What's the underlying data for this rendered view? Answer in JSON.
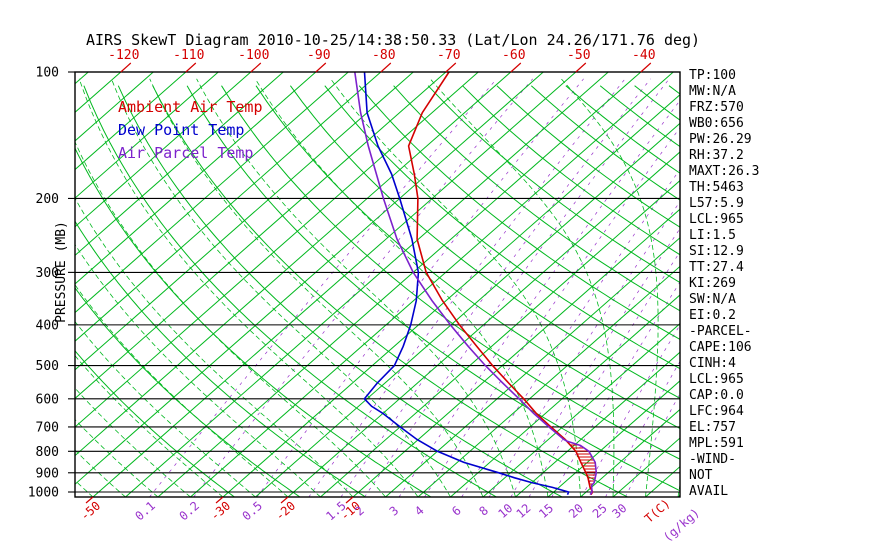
{
  "title": "AIRS SkewT Diagram 2010-10-25/14:38:50.33 (Lat/Lon 24.26/171.76 deg)",
  "colors": {
    "ambient": "#d40000",
    "dewpoint": "#0000cd",
    "parcel": "#7c22cc",
    "mixratio": "#9933cc",
    "green": "#00b81e",
    "black": "#000000"
  },
  "legend": [
    {
      "label": "Ambient Air Temp",
      "color": "ambient"
    },
    {
      "label": "Dew Point Temp",
      "color": "dewpoint"
    },
    {
      "label": "Air Parcel Temp",
      "color": "parcel"
    }
  ],
  "axes": {
    "pressure_label": "PRESSURE (MB)",
    "pressure_ticks": [
      100,
      200,
      300,
      400,
      500,
      600,
      700,
      800,
      900,
      1000
    ],
    "top_temp_ticks_C": [
      -120,
      -110,
      -100,
      -90,
      -80,
      -70,
      -60,
      -50,
      -40
    ],
    "bottom_temp_ticks_C": [
      -50,
      -30,
      -20,
      -10
    ],
    "mixratio_ticks_gkg": [
      0.1,
      0.2,
      0.5,
      1.5,
      2,
      3,
      4,
      6,
      8,
      10,
      12,
      15,
      20,
      25,
      30
    ],
    "temp_unit_label": "T(C)",
    "mixratio_unit_label": "(g/kg)"
  },
  "stats": [
    "TP:100",
    "MW:N/A",
    "FRZ:570",
    "WB0:656",
    "PW:26.29",
    "RH:37.2",
    "MAXT:26.3",
    "TH:5463",
    "L57:5.9",
    "LCL:965",
    "LI:1.5",
    "SI:12.9",
    "TT:27.4",
    "KI:269",
    "SW:N/A",
    "EI:0.2",
    "-PARCEL-",
    "CAPE:106",
    "CINH:4",
    "LCL:965",
    "CAP:0.0",
    "LFC:964",
    "EL:757",
    "MPL:591",
    "-WIND-",
    "NOT",
    "AVAIL"
  ],
  "chart_data": {
    "type": "line",
    "diagram": "skew-t log-p sounding",
    "title": "AIRS SkewT Diagram 2010-10-25/14:38:50.33 (Lat/Lon 24.26/171.76 deg)",
    "xlabel": "Temperature (C)",
    "ylabel": "Pressure (mb)",
    "ylim": [
      1028,
      100
    ],
    "top_axis_temp_range_C": [
      -120,
      -40
    ],
    "grid": {
      "isotherms_C": {
        "min": -130,
        "max": 40,
        "step": 5
      },
      "dry_adiabats_theta_K": {
        "min": 243,
        "max": 473,
        "step": 10
      },
      "moist_adiabats_start_C": {
        "min": -60,
        "max": 40,
        "step": 5
      },
      "mixing_ratio_lines_gkg": [
        0.1,
        0.2,
        0.5,
        1,
        1.5,
        2,
        3,
        4,
        6,
        8,
        10,
        12,
        15,
        20,
        25,
        30
      ]
    },
    "series": [
      {
        "key": "ambient",
        "name": "Ambient Air Temp",
        "points": [
          [
            1015,
            26.2
          ],
          [
            1000,
            26.0
          ],
          [
            975,
            24.8
          ],
          [
            950,
            23.8
          ],
          [
            925,
            22.8
          ],
          [
            900,
            21.6
          ],
          [
            850,
            19.0
          ],
          [
            800,
            16.3
          ],
          [
            750,
            12.6
          ],
          [
            700,
            8.2
          ],
          [
            650,
            3.6
          ],
          [
            600,
            -0.9
          ],
          [
            550,
            -6.0
          ],
          [
            500,
            -11.5
          ],
          [
            450,
            -17.3
          ],
          [
            400,
            -23.7
          ],
          [
            350,
            -30.6
          ],
          [
            300,
            -38.0
          ],
          [
            250,
            -45.2
          ],
          [
            200,
            -52.2
          ],
          [
            175,
            -57.0
          ],
          [
            150,
            -62.8
          ],
          [
            125,
            -66.5
          ],
          [
            100,
            -69.5
          ]
        ]
      },
      {
        "key": "dewpoint",
        "name": "Dew Point Temp",
        "points": [
          [
            1015,
            22.6
          ],
          [
            1000,
            22.3
          ],
          [
            975,
            19.0
          ],
          [
            950,
            15.0
          ],
          [
            925,
            11.5
          ],
          [
            900,
            8.2
          ],
          [
            850,
            1.0
          ],
          [
            800,
            -5.0
          ],
          [
            750,
            -10.2
          ],
          [
            700,
            -15.0
          ],
          [
            650,
            -20.0
          ],
          [
            625,
            -23.0
          ],
          [
            600,
            -25.4
          ],
          [
            550,
            -26.2
          ],
          [
            500,
            -26.6
          ],
          [
            450,
            -28.6
          ],
          [
            400,
            -31.2
          ],
          [
            350,
            -34.6
          ],
          [
            300,
            -39.2
          ],
          [
            250,
            -46.0
          ],
          [
            200,
            -55.0
          ],
          [
            175,
            -60.5
          ],
          [
            150,
            -67.5
          ],
          [
            125,
            -75.0
          ],
          [
            100,
            -82.5
          ]
        ]
      },
      {
        "key": "parcel",
        "name": "Air Parcel Temp",
        "points": [
          [
            1015,
            26.1
          ],
          [
            1000,
            25.9
          ],
          [
            965,
            24.7
          ],
          [
            950,
            24.6
          ],
          [
            900,
            23.2
          ],
          [
            850,
            21.2
          ],
          [
            800,
            18.3
          ],
          [
            775,
            16.0
          ],
          [
            757,
            13.2
          ],
          [
            750,
            12.4
          ],
          [
            700,
            7.9
          ],
          [
            650,
            3.2
          ],
          [
            600,
            -1.6
          ],
          [
            550,
            -6.9
          ],
          [
            500,
            -12.6
          ],
          [
            450,
            -18.6
          ],
          [
            400,
            -25.1
          ],
          [
            350,
            -32.2
          ],
          [
            300,
            -40.0
          ],
          [
            250,
            -48.3
          ],
          [
            200,
            -57.5
          ],
          [
            150,
            -69.0
          ],
          [
            125,
            -76.0
          ],
          [
            100,
            -84.0
          ]
        ]
      }
    ],
    "cape_hatch_pressure_range_mb": [
      962,
      757
    ]
  }
}
